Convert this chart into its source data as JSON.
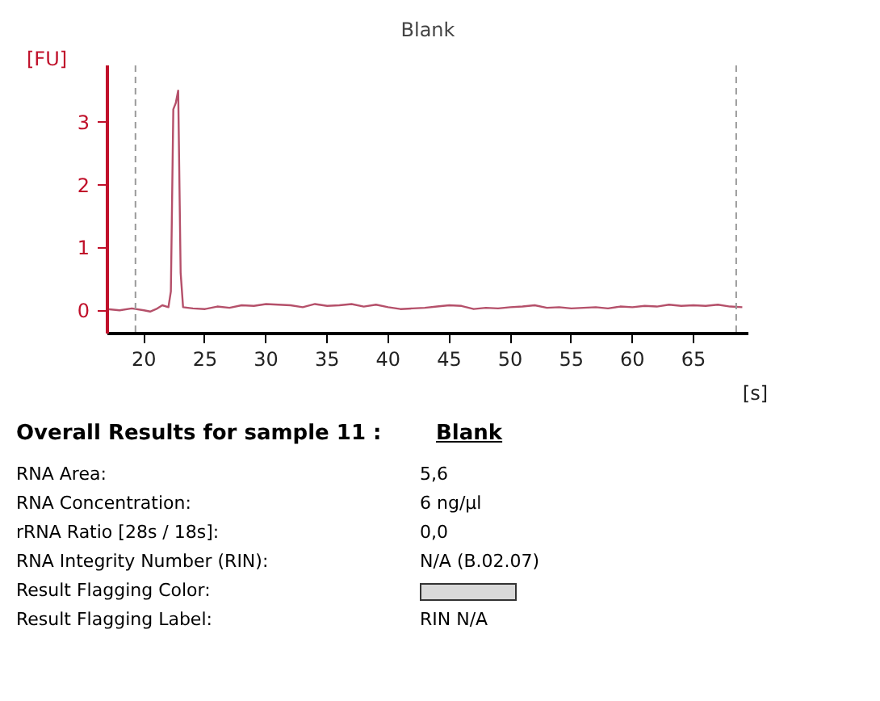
{
  "chart_data": {
    "type": "line",
    "title": "Blank",
    "xlabel": "[s]",
    "ylabel": "[FU]",
    "x": [
      17,
      18,
      19,
      20,
      20.5,
      21,
      21.5,
      22,
      22.2,
      22.4,
      22.6,
      22.8,
      23.0,
      23.2,
      24,
      25,
      26,
      27,
      28,
      29,
      30,
      31,
      32,
      33,
      34,
      35,
      36,
      37,
      38,
      39,
      40,
      41,
      42,
      43,
      44,
      45,
      46,
      47,
      48,
      49,
      50,
      51,
      52,
      53,
      54,
      55,
      56,
      57,
      58,
      59,
      60,
      61,
      62,
      63,
      64,
      65,
      66,
      67,
      68,
      69
    ],
    "series": [
      {
        "color": "#b5506a",
        "values": [
          0.02,
          0.0,
          0.03,
          0.0,
          -0.02,
          0.02,
          0.08,
          0.05,
          0.3,
          3.2,
          3.3,
          3.5,
          0.6,
          0.05,
          0.03,
          0.02,
          0.06,
          0.04,
          0.08,
          0.07,
          0.1,
          0.09,
          0.08,
          0.05,
          0.1,
          0.07,
          0.08,
          0.1,
          0.06,
          0.09,
          0.05,
          0.02,
          0.03,
          0.04,
          0.06,
          0.08,
          0.07,
          0.02,
          0.04,
          0.03,
          0.05,
          0.06,
          0.08,
          0.04,
          0.05,
          0.03,
          0.04,
          0.05,
          0.03,
          0.06,
          0.05,
          0.07,
          0.06,
          0.09,
          0.07,
          0.08,
          0.07,
          0.09,
          0.06,
          0.05
        ]
      }
    ],
    "xlim": [
      17,
      69.5
    ],
    "ylim": [
      -0.37,
      3.9
    ],
    "xticks": [
      20,
      25,
      30,
      35,
      40,
      45,
      50,
      55,
      60,
      65
    ],
    "yticks": [
      0,
      1,
      2,
      3
    ],
    "grid": false,
    "marker": "none",
    "line_style": "solid",
    "ref_lines": [
      {
        "axis": "x",
        "value": 19.3,
        "color": "#999999",
        "line_style": "dashed"
      },
      {
        "axis": "x",
        "value": 68.5,
        "color": "#999999",
        "line_style": "dashed"
      }
    ],
    "annotations": [
      "Overall Results for sample 11  :",
      "Blank",
      "RNA Area:",
      "5,6",
      "RNA Concentration:",
      "6 ng/µl",
      "rRNA Ratio [28s / 18s]:",
      "0,0",
      "RNA Integrity Number (RIN):",
      "N/A   (B.02.07)",
      "Result Flagging Color:",
      "Result Flagging Label:",
      "RIN N/A"
    ]
  }
}
